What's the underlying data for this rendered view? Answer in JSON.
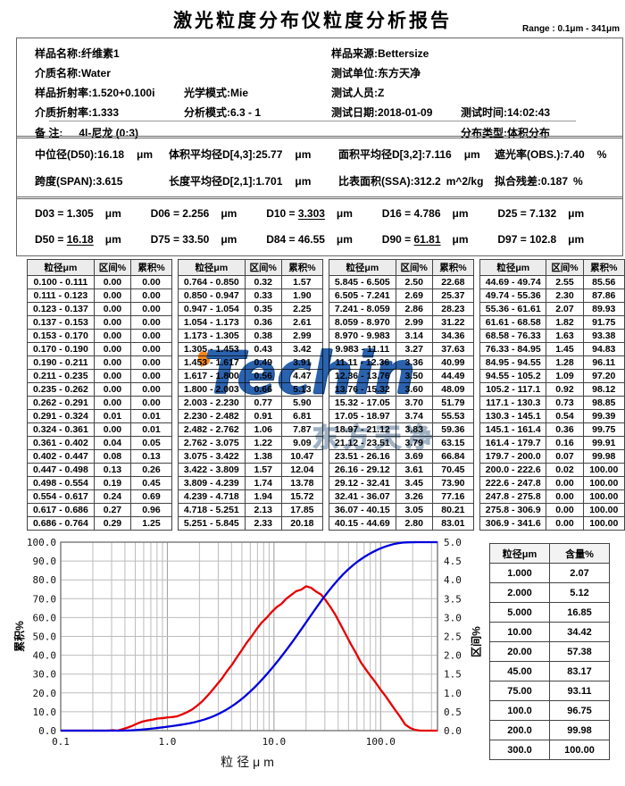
{
  "title": "激光粒度分布仪粒度分析报告",
  "range_label": "Range : 0.1μm - 341μm",
  "info": {
    "sample_name": {
      "label": "样品名称:",
      "value": "纤维素1"
    },
    "sample_source": {
      "label": "样品来源:",
      "value": "Bettersize"
    },
    "medium_name": {
      "label": "介质名称:",
      "value": "Water"
    },
    "test_unit": {
      "label": "测试单位:",
      "value": "东方天净"
    },
    "sample_ri": {
      "label": "样品折射率:",
      "value": "1.520+0.100i"
    },
    "optical_model": {
      "label": "光学模式:",
      "value": "Mie"
    },
    "operator": {
      "label": "测试人员:",
      "value": "Z"
    },
    "medium_ri": {
      "label": "介质折射率:",
      "value": "1.333"
    },
    "analysis_mode": {
      "label": "分析模式:",
      "value": "6.3 - 1"
    },
    "test_date": {
      "label": "测试日期:",
      "value": "2018-01-09"
    },
    "test_time": {
      "label": "测试时间:",
      "value": "14:02:43"
    },
    "remark": {
      "label": "备 注:",
      "value": "4l-尼龙 (0:3)"
    },
    "distribution_type": {
      "label": "分布类型:",
      "value": "体积分布"
    }
  },
  "stats": {
    "d50": {
      "label": "中位径(D50):",
      "value": "16.18",
      "unit": "μm"
    },
    "d43": {
      "label": "体积平均径D[4,3]:",
      "value": "25.77",
      "unit": "μm"
    },
    "d32": {
      "label": "面积平均径D[3,2]:",
      "value": "7.116",
      "unit": "μm"
    },
    "obs": {
      "label": "遮光率(OBS.):",
      "value": "7.40",
      "unit": "%"
    },
    "span": {
      "label": "跨度(SPAN):",
      "value": "3.615",
      "unit": ""
    },
    "d21": {
      "label": "长度平均径D[2,1]:",
      "value": "1.701",
      "unit": "μm"
    },
    "ssa": {
      "label": "比表面积(SSA):",
      "value": "312.2",
      "unit": "m^2/kg"
    },
    "residual": {
      "label": "拟合残差:",
      "value": "0.187",
      "unit": "%"
    }
  },
  "d_values": [
    {
      "name": "D03",
      "value": "1.305",
      "unit": "μm",
      "underline": false
    },
    {
      "name": "D06",
      "value": "2.256",
      "unit": "μm",
      "underline": false
    },
    {
      "name": "D10",
      "value": "3.303",
      "unit": "μm",
      "underline": true
    },
    {
      "name": "D16",
      "value": "4.786",
      "unit": "μm",
      "underline": false
    },
    {
      "name": "D25",
      "value": "7.132",
      "unit": "μm",
      "underline": false
    },
    {
      "name": "D50",
      "value": "16.18",
      "unit": "μm",
      "underline": true
    },
    {
      "name": "D75",
      "value": "33.50",
      "unit": "μm",
      "underline": false
    },
    {
      "name": "D84",
      "value": "46.55",
      "unit": "μm",
      "underline": false
    },
    {
      "name": "D90",
      "value": "61.81",
      "unit": "μm",
      "underline": true
    },
    {
      "name": "D97",
      "value": "102.8",
      "unit": "μm",
      "underline": false
    }
  ],
  "distribution_table": {
    "headers": [
      "粒径μm",
      "区间%",
      "累积%"
    ]
  },
  "content_table": {
    "headers": [
      "粒径μm",
      "含量%"
    ],
    "rows": [
      [
        "1.000",
        "2.07"
      ],
      [
        "2.000",
        "5.12"
      ],
      [
        "5.000",
        "16.85"
      ],
      [
        "10.00",
        "34.42"
      ],
      [
        "20.00",
        "57.38"
      ],
      [
        "45.00",
        "83.17"
      ],
      [
        "75.00",
        "93.11"
      ],
      [
        "100.0",
        "96.75"
      ],
      [
        "200.0",
        "99.98"
      ],
      [
        "300.0",
        "100.00"
      ]
    ]
  },
  "watermark": {
    "brand": "Techin",
    "company": "东方天净"
  },
  "colors": {
    "cumulative_curve": "#0000dd",
    "interval_curve": "#e60000",
    "grid_minor": "#bcbcbc",
    "grid_major": "#9a9a9a",
    "frame": "#787878",
    "watermark_blue": "#2a62ae",
    "watermark_orange": "#f5861f"
  },
  "chart_data": {
    "type": "line",
    "xlabel": "粒径μm",
    "ylabel_left": "累积%",
    "ylabel_right": "区间%",
    "x_scale": "log",
    "xlim": [
      0.1,
      341.6
    ],
    "ylim_left": [
      0,
      100
    ],
    "ylim_right": [
      0,
      5
    ],
    "x_tick_labels": [
      "0.1",
      "1.0",
      "10.0",
      "100.0"
    ],
    "y_tick_step_left": 10,
    "y_tick_step_right": 0.5,
    "grid": true,
    "series": [
      {
        "name": "累积%",
        "axis": "left",
        "color": "#0000dd",
        "x_from": "bin_upper_edges",
        "y_from": "cumulative_pct"
      },
      {
        "name": "区间%",
        "axis": "right",
        "color": "#e60000",
        "x_from": "bin_geometric_midpoints",
        "y_from": "interval_pct"
      }
    ],
    "bin_ranges": [
      "0.100 - 0.111",
      "0.111 - 0.123",
      "0.123 - 0.137",
      "0.137 - 0.153",
      "0.153 - 0.170",
      "0.170 - 0.190",
      "0.190 - 0.211",
      "0.211 - 0.235",
      "0.235 - 0.262",
      "0.262 - 0.291",
      "0.291 - 0.324",
      "0.324 - 0.361",
      "0.361 - 0.402",
      "0.402 - 0.447",
      "0.447 - 0.498",
      "0.498 - 0.554",
      "0.554 - 0.617",
      "0.617 - 0.686",
      "0.686 - 0.764",
      "0.764 - 0.850",
      "0.850 - 0.947",
      "0.947 - 1.054",
      "1.054 - 1.173",
      "1.173 - 1.305",
      "1.305 - 1.453",
      "1.453 - 1.617",
      "1.617 - 1.800",
      "1.800 - 2.003",
      "2.003 - 2.230",
      "2.230 - 2.482",
      "2.482 - 2.762",
      "2.762 - 3.075",
      "3.075 - 3.422",
      "3.422 - 3.809",
      "3.809 - 4.239",
      "4.239 - 4.718",
      "4.718 - 5.251",
      "5.251 - 5.845",
      "5.845 - 6.505",
      "6.505 - 7.241",
      "7.241 - 8.059",
      "8.059 - 8.970",
      "8.970 - 9.983",
      "9.983 - 11.11",
      "11.11 - 12.36",
      "12.36 - 13.76",
      "13.76 - 15.32",
      "15.32 - 17.05",
      "17.05 - 18.97",
      "18.97 - 21.12",
      "21.12 - 23.51",
      "23.51 - 26.16",
      "26.16 - 29.12",
      "29.12 - 32.41",
      "32.41 - 36.07",
      "36.07 - 40.15",
      "40.15 - 44.69",
      "44.69 - 49.74",
      "49.74 - 55.36",
      "55.36 - 61.61",
      "61.61 - 68.58",
      "68.58 - 76.33",
      "76.33 - 84.95",
      "84.95 - 94.55",
      "94.55 - 105.2",
      "105.2 - 117.1",
      "117.1 - 130.3",
      "130.3 - 145.1",
      "145.1 - 161.4",
      "161.4 - 179.7",
      "179.7 - 200.0",
      "200.0 - 222.6",
      "222.6 - 247.8",
      "247.8 - 275.8",
      "275.8 - 306.9",
      "306.9 - 341.6"
    ],
    "interval_pct": [
      "0.00",
      "0.00",
      "0.00",
      "0.00",
      "0.00",
      "0.00",
      "0.00",
      "0.00",
      "0.00",
      "0.00",
      "0.01",
      "0.00",
      "0.04",
      "0.08",
      "0.13",
      "0.19",
      "0.24",
      "0.27",
      "0.29",
      "0.32",
      "0.33",
      "0.35",
      "0.36",
      "0.38",
      "0.43",
      "0.49",
      "0.56",
      "0.66",
      "0.77",
      "0.91",
      "1.06",
      "1.22",
      "1.38",
      "1.57",
      "1.74",
      "1.94",
      "2.13",
      "2.33",
      "2.50",
      "2.69",
      "2.86",
      "2.99",
      "3.14",
      "3.27",
      "3.36",
      "3.50",
      "3.60",
      "3.70",
      "3.74",
      "3.83",
      "3.79",
      "3.69",
      "3.61",
      "3.45",
      "3.26",
      "3.05",
      "2.80",
      "2.55",
      "2.30",
      "2.07",
      "1.82",
      "1.63",
      "1.45",
      "1.28",
      "1.09",
      "0.92",
      "0.73",
      "0.54",
      "0.36",
      "0.16",
      "0.07",
      "0.02",
      "0.00",
      "0.00",
      "0.00",
      "0.00"
    ],
    "cumulative_pct": [
      "0.00",
      "0.00",
      "0.00",
      "0.00",
      "0.00",
      "0.00",
      "0.00",
      "0.00",
      "0.00",
      "0.00",
      "0.01",
      "0.01",
      "0.05",
      "0.13",
      "0.26",
      "0.45",
      "0.69",
      "0.96",
      "1.25",
      "1.57",
      "1.90",
      "2.25",
      "2.61",
      "2.99",
      "3.42",
      "3.91",
      "4.47",
      "5.13",
      "5.90",
      "6.81",
      "7.87",
      "9.09",
      "10.47",
      "12.04",
      "13.78",
      "15.72",
      "17.85",
      "20.18",
      "22.68",
      "25.37",
      "28.23",
      "31.22",
      "34.36",
      "37.63",
      "40.99",
      "44.49",
      "48.09",
      "51.79",
      "55.53",
      "59.36",
      "63.15",
      "66.84",
      "70.45",
      "73.90",
      "77.16",
      "80.21",
      "83.01",
      "85.56",
      "87.86",
      "89.93",
      "91.75",
      "93.38",
      "94.83",
      "96.11",
      "97.20",
      "98.12",
      "98.85",
      "99.39",
      "99.75",
      "99.91",
      "99.98",
      "100.00",
      "100.00",
      "100.00",
      "100.00",
      "100.00"
    ]
  }
}
